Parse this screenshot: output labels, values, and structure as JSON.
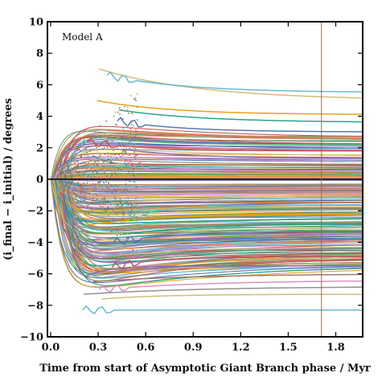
{
  "chart_data": {
    "type": "line",
    "annotation": "Model A",
    "xlabel": "Time from start of Asymptotic Giant Branch phase / Myr",
    "ylabel": "(i_final − i_initial) / degrees",
    "xlim": [
      -0.02,
      1.97
    ],
    "ylim": [
      -10,
      10
    ],
    "x_ticks": [
      "0.0",
      "0.3",
      "0.6",
      "0.9",
      "1.2",
      "1.5",
      "1.8"
    ],
    "x_tick_values": [
      0.0,
      0.3,
      0.6,
      0.9,
      1.2,
      1.5,
      1.8
    ],
    "y_ticks": [
      "10",
      "8",
      "6",
      "4",
      "2",
      "0",
      "−2",
      "−4",
      "−6",
      "−8",
      "−10"
    ],
    "y_tick_values": [
      10,
      8,
      6,
      4,
      2,
      0,
      -2,
      -4,
      -6,
      -8,
      -10
    ],
    "zero_line": 0,
    "vertical_marker_x": 1.71,
    "vertical_marker_color": "#b5651d",
    "grid": false,
    "legend": "none",
    "series_count": 200,
    "palette": [
      "#4c72b0",
      "#dd8452",
      "#55a868",
      "#c44e52",
      "#8172b3",
      "#937860",
      "#da8bc3",
      "#8c8c8c",
      "#ccb974",
      "#64b5cd",
      "#e5a00d",
      "#1f9e89"
    ],
    "highlighted_series_final_values": [
      5.0,
      5.5,
      4.1,
      3.6,
      3.0,
      2.6,
      2.2,
      1.8,
      1.3,
      0.9,
      0.5,
      -0.4,
      -1.0,
      -1.6,
      -2.2,
      -2.8,
      -3.3,
      -3.9,
      -4.4,
      -4.9,
      -5.5,
      -6.0,
      -6.4,
      -6.8,
      -7.3,
      -8.3
    ],
    "highlighted_series_peak_values": [
      7.0,
      6.6,
      5.0,
      4.4,
      3.7,
      3.1,
      2.8,
      2.4,
      1.9,
      1.5,
      1.0,
      -0.8,
      -1.5,
      -2.3,
      -2.9,
      -3.5,
      -4.0,
      -4.6,
      -5.0,
      -5.6,
      -6.1,
      -6.5,
      -7.0,
      -7.3,
      -7.6,
      -8.3
    ]
  }
}
